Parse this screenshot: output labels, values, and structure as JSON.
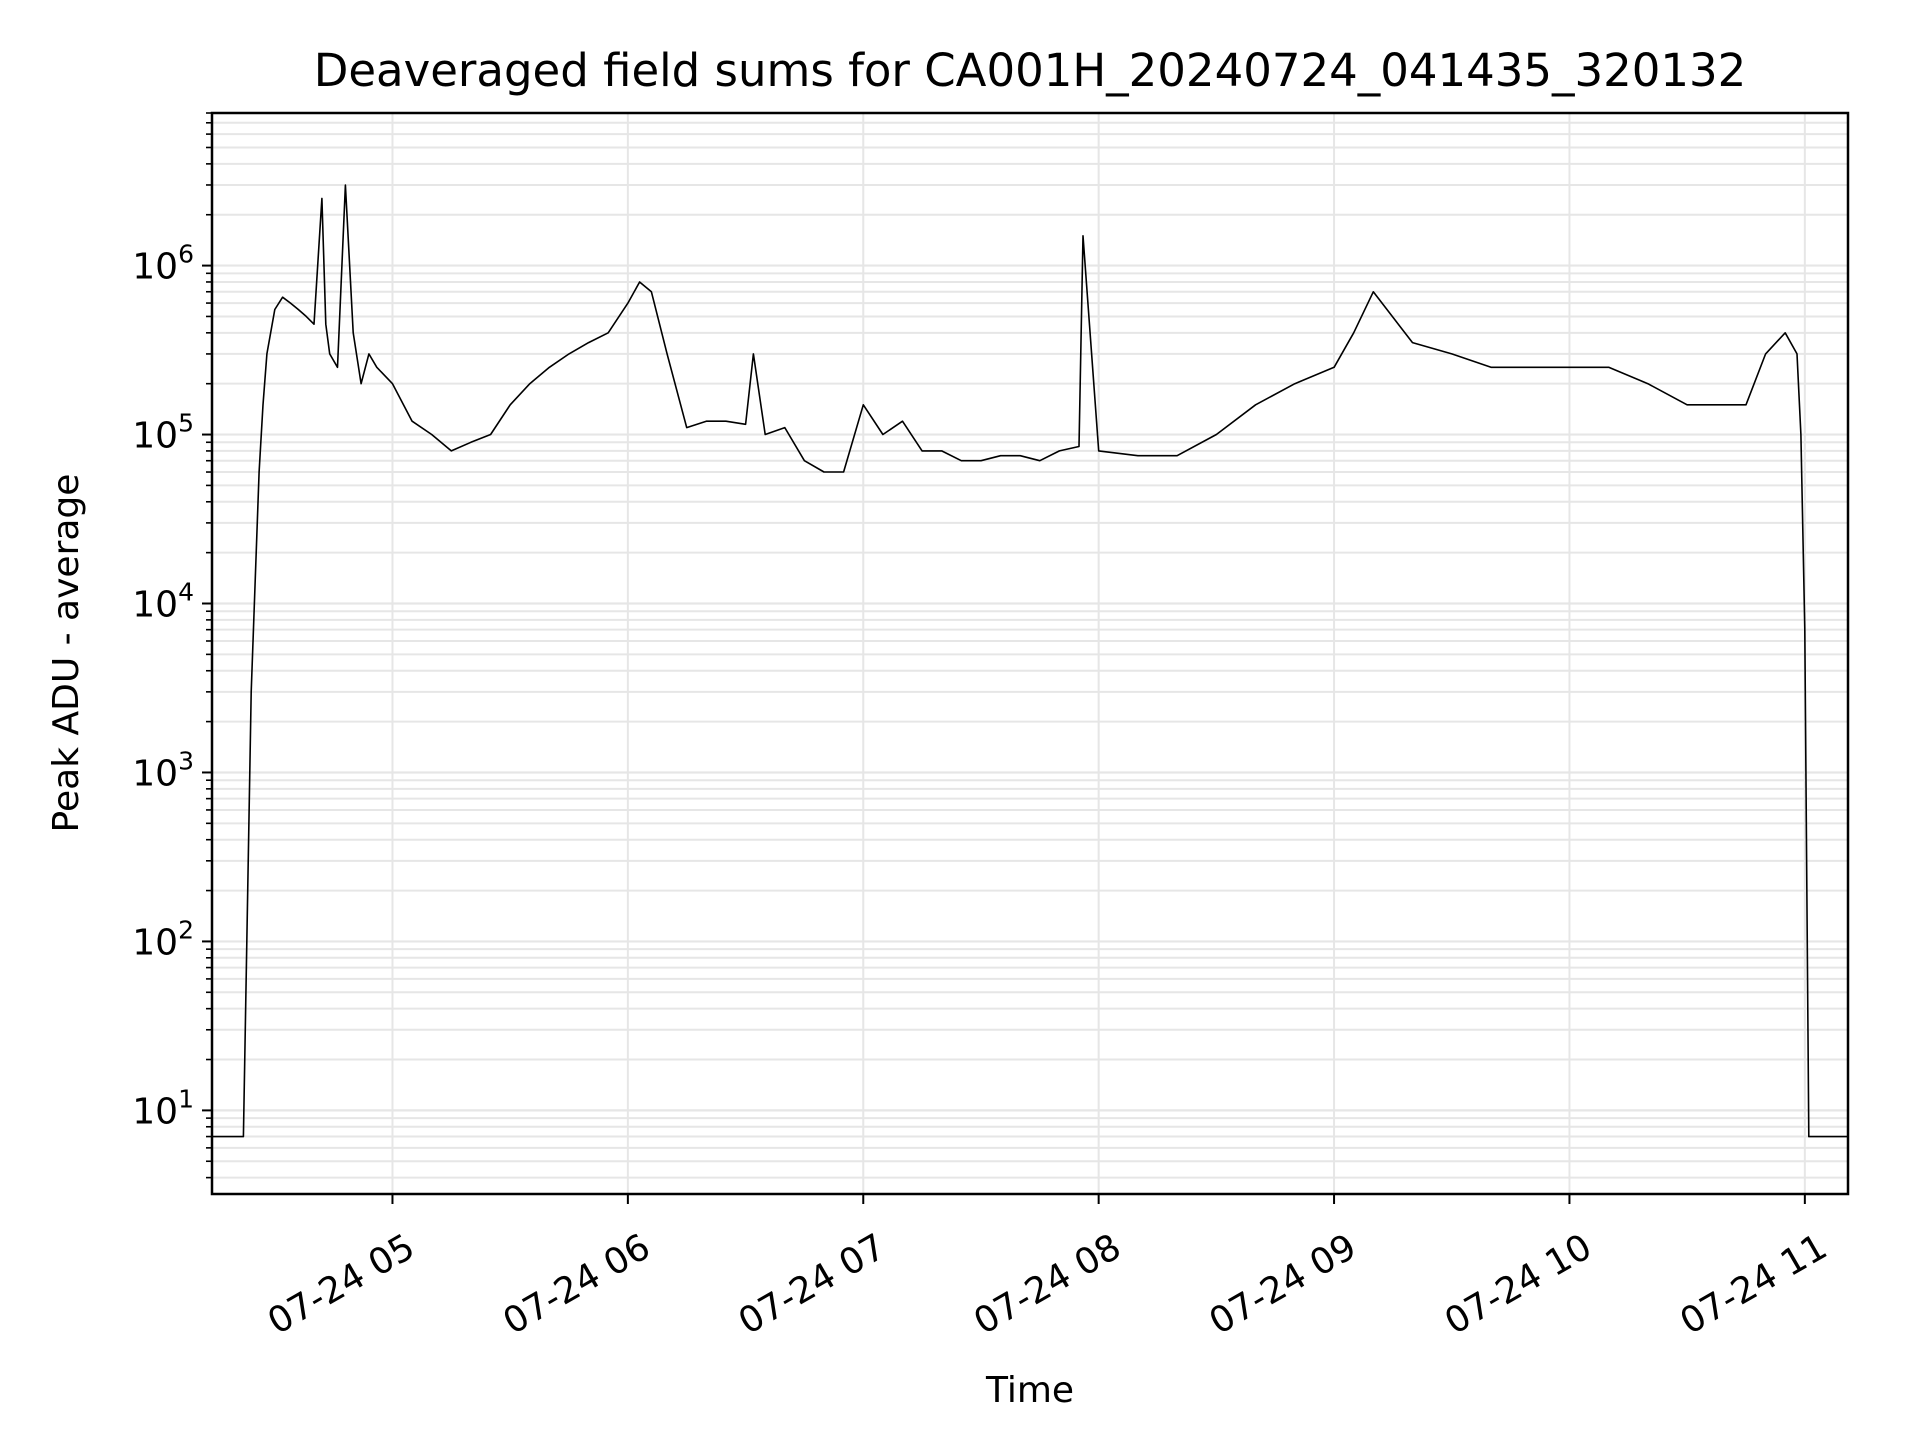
{
  "chart_data": {
    "type": "line",
    "title": "Deaveraged field sums for CA001H_20240724_041435_320132",
    "xlabel": "Time",
    "ylabel": "Peak ADU - average",
    "x_range": [
      "07-24 04:14",
      "07-24 11:11"
    ],
    "y_range": [
      3.2,
      8000000
    ],
    "y_scale": "log",
    "grid": true,
    "line_color": "#000000",
    "grid_color": "#e6e6e6",
    "x_ticks": [
      {
        "label": "07-24 05",
        "hour": 5
      },
      {
        "label": "07-24 06",
        "hour": 6
      },
      {
        "label": "07-24 07",
        "hour": 7
      },
      {
        "label": "07-24 08",
        "hour": 8
      },
      {
        "label": "07-24 09",
        "hour": 9
      },
      {
        "label": "07-24 10",
        "hour": 10
      },
      {
        "label": "07-24 11",
        "hour": 11
      }
    ],
    "y_ticks": [
      {
        "base": "10",
        "exp": "1",
        "value": 10
      },
      {
        "base": "10",
        "exp": "2",
        "value": 100
      },
      {
        "base": "10",
        "exp": "3",
        "value": 1000
      },
      {
        "base": "10",
        "exp": "4",
        "value": 10000
      },
      {
        "base": "10",
        "exp": "5",
        "value": 100000
      },
      {
        "base": "10",
        "exp": "6",
        "value": 1000000
      }
    ],
    "series": [
      {
        "x": [
          "04:14",
          "04:19",
          "04:22",
          "04:24",
          "04:26",
          "04:27",
          "04:28",
          "04:30",
          "04:32",
          "04:34",
          "04:36",
          "04:38",
          "04:40",
          "04:42",
          "04:43",
          "04:44",
          "04:46",
          "04:48",
          "04:50",
          "04:52",
          "04:54",
          "04:56",
          "05:00",
          "05:05",
          "05:10",
          "05:15",
          "05:20",
          "05:25",
          "05:30",
          "05:35",
          "05:40",
          "05:45",
          "05:50",
          "05:55",
          "06:00",
          "06:03",
          "06:06",
          "06:10",
          "06:15",
          "06:20",
          "06:25",
          "06:30",
          "06:32",
          "06:35",
          "06:40",
          "06:45",
          "06:50",
          "06:55",
          "07:00",
          "07:05",
          "07:10",
          "07:15",
          "07:20",
          "07:25",
          "07:30",
          "07:35",
          "07:40",
          "07:45",
          "07:50",
          "07:55",
          "07:56",
          "08:00",
          "08:10",
          "08:20",
          "08:30",
          "08:40",
          "08:50",
          "09:00",
          "09:05",
          "09:10",
          "09:20",
          "09:30",
          "09:40",
          "09:50",
          "10:00",
          "10:10",
          "10:20",
          "10:30",
          "10:40",
          "10:45",
          "10:50",
          "10:55",
          "10:58",
          "10:59",
          "11:00",
          "11:01",
          "11:11"
        ],
        "y": [
          7,
          7,
          7,
          3000,
          60000,
          150000,
          300000,
          550000,
          650000,
          600000,
          550000,
          500000,
          450000,
          2500000,
          450000,
          300000,
          250000,
          3000000,
          400000,
          200000,
          300000,
          250000,
          200000,
          120000,
          100000,
          80000,
          90000,
          100000,
          150000,
          200000,
          250000,
          300000,
          350000,
          400000,
          600000,
          800000,
          700000,
          300000,
          110000,
          120000,
          120000,
          115000,
          300000,
          100000,
          110000,
          70000,
          60000,
          60000,
          150000,
          100000,
          120000,
          80000,
          80000,
          70000,
          70000,
          75000,
          75000,
          70000,
          80000,
          85000,
          1500000,
          80000,
          75000,
          75000,
          100000,
          150000,
          200000,
          250000,
          400000,
          700000,
          350000,
          300000,
          250000,
          250000,
          250000,
          250000,
          200000,
          150000,
          150000,
          150000,
          300000,
          400000,
          300000,
          100000,
          7000,
          7,
          7
        ]
      }
    ]
  }
}
